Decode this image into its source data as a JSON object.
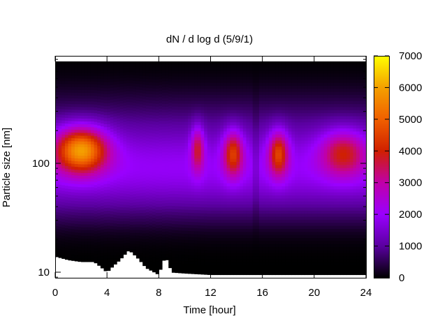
{
  "chart_data": {
    "type": "heatmap",
    "title": "dN / d log d (5/9/1)",
    "xlabel": "Time [hour]",
    "ylabel": "Particle size [nm]",
    "x_range": [
      0,
      24
    ],
    "x_ticks": [
      "0",
      "4",
      "8",
      "12",
      "16",
      "20",
      "24"
    ],
    "y_scale": "log",
    "y_range_nm": [
      9,
      800
    ],
    "y_ticks": [
      "10",
      "100"
    ],
    "colorbar": {
      "range": [
        0,
        7000
      ],
      "ticks": [
        "0",
        "1000",
        "2000",
        "3000",
        "4000",
        "5000",
        "6000",
        "7000"
      ],
      "palette": [
        "#000000",
        "#5a00a0",
        "#9a00ff",
        "#c000a8",
        "#d02000",
        "#f06000",
        "#f4a000",
        "#ffff00"
      ]
    },
    "size_peaks": [
      {
        "hours": [
          0,
          4
        ],
        "peak_nm": 130,
        "max_value": 6000
      },
      {
        "hours": [
          10.5,
          11.5
        ],
        "peak_nm": 130,
        "max_value": 3800
      },
      {
        "hours": [
          13,
          14.5
        ],
        "peak_nm": 120,
        "max_value": 4500
      },
      {
        "hours": [
          16.5,
          18
        ],
        "peak_nm": 120,
        "max_value": 4600
      },
      {
        "hours": [
          20.5,
          24
        ],
        "peak_nm": 120,
        "max_value": 4000
      }
    ],
    "min_measured_size_nm": [
      {
        "hour": 0,
        "nm": 14
      },
      {
        "hour": 1,
        "nm": 13
      },
      {
        "hour": 2,
        "nm": 12.5
      },
      {
        "hour": 3,
        "nm": 12.5
      },
      {
        "hour": 4,
        "nm": 10
      },
      {
        "hour": 5,
        "nm": 13
      },
      {
        "hour": 5.7,
        "nm": 16
      },
      {
        "hour": 6.5,
        "nm": 13
      },
      {
        "hour": 7,
        "nm": 11
      },
      {
        "hour": 8,
        "nm": 9.5
      },
      {
        "hour": 8.5,
        "nm": 14
      },
      {
        "hour": 9,
        "nm": 10
      },
      {
        "hour": 10,
        "nm": 9.8
      },
      {
        "hour": 12,
        "nm": 9.5
      },
      {
        "hour": 24,
        "nm": 9.5
      }
    ]
  }
}
